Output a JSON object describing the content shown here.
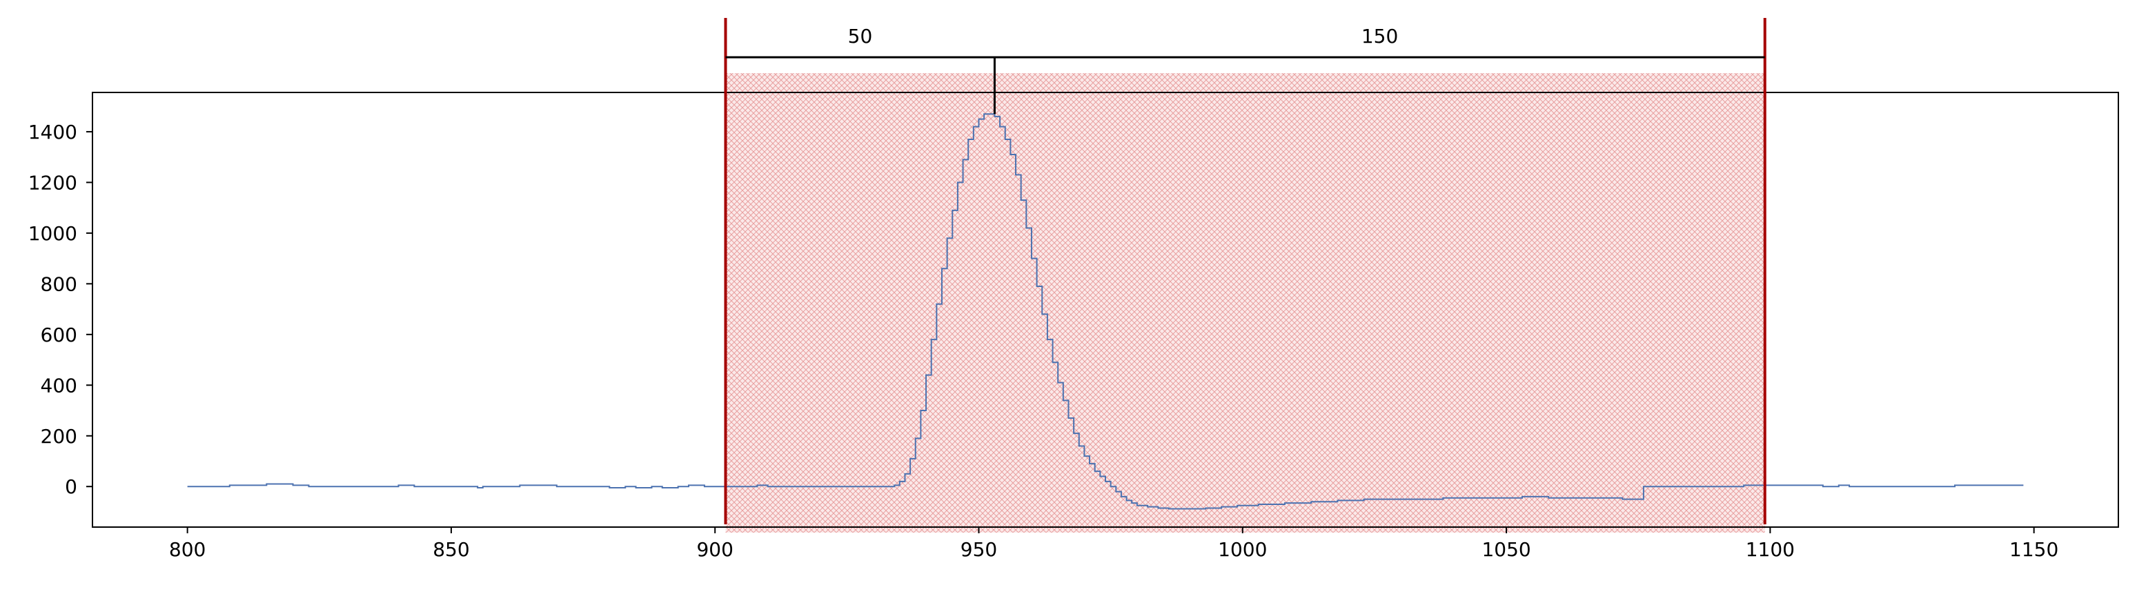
{
  "chart_data": {
    "type": "line",
    "title": "",
    "xlabel": "",
    "ylabel": "",
    "xlim": [
      782,
      1166
    ],
    "ylim": [
      -160,
      1555
    ],
    "xticks": [
      800,
      850,
      900,
      950,
      1000,
      1050,
      1100,
      1150
    ],
    "yticks": [
      0,
      200,
      400,
      600,
      800,
      1000,
      1200,
      1400
    ],
    "grid": false,
    "step": true,
    "series": [
      {
        "name": "",
        "color": "#4c72b0",
        "x": [
          800,
          805,
          808,
          810,
          815,
          820,
          823,
          825,
          830,
          835,
          840,
          843,
          845,
          850,
          855,
          856,
          858,
          860,
          863,
          865,
          870,
          875,
          880,
          883,
          885,
          888,
          890,
          893,
          895,
          898,
          900,
          905,
          908,
          910,
          915,
          920,
          925,
          930,
          932,
          934,
          935,
          936,
          937,
          938,
          939,
          940,
          941,
          942,
          943,
          944,
          945,
          946,
          947,
          948,
          949,
          950,
          951,
          952,
          953,
          954,
          955,
          956,
          957,
          958,
          959,
          960,
          961,
          962,
          963,
          964,
          965,
          966,
          967,
          968,
          969,
          970,
          971,
          972,
          973,
          974,
          975,
          976,
          977,
          978,
          979,
          980,
          982,
          984,
          986,
          988,
          990,
          993,
          996,
          999,
          1003,
          1008,
          1013,
          1018,
          1023,
          1028,
          1033,
          1038,
          1043,
          1048,
          1053,
          1058,
          1063,
          1068,
          1072,
          1075,
          1076,
          1080,
          1085,
          1090,
          1095,
          1098,
          1100,
          1105,
          1110,
          1113,
          1115,
          1120,
          1125,
          1130,
          1135,
          1140,
          1145,
          1148
        ],
        "y": [
          0,
          0,
          5,
          5,
          10,
          5,
          0,
          0,
          0,
          0,
          5,
          0,
          0,
          0,
          -5,
          0,
          0,
          0,
          5,
          5,
          0,
          0,
          -5,
          0,
          -5,
          0,
          -5,
          0,
          5,
          0,
          0,
          0,
          5,
          0,
          0,
          0,
          0,
          0,
          0,
          5,
          20,
          50,
          110,
          190,
          300,
          440,
          580,
          720,
          860,
          980,
          1090,
          1200,
          1290,
          1370,
          1420,
          1450,
          1470,
          1470,
          1460,
          1420,
          1370,
          1310,
          1230,
          1130,
          1020,
          900,
          790,
          680,
          580,
          490,
          410,
          340,
          270,
          210,
          160,
          120,
          90,
          60,
          40,
          20,
          0,
          -20,
          -40,
          -55,
          -65,
          -75,
          -80,
          -85,
          -88,
          -88,
          -88,
          -85,
          -80,
          -75,
          -70,
          -65,
          -60,
          -55,
          -50,
          -50,
          -50,
          -45,
          -45,
          -45,
          -40,
          -45,
          -45,
          -45,
          -50,
          -50,
          0,
          0,
          0,
          0,
          5,
          5,
          5,
          5,
          0,
          5,
          0,
          0,
          0,
          0,
          5,
          5,
          5,
          5
        ]
      }
    ],
    "shaded_region": {
      "x_start": 902,
      "x_end": 1099,
      "color": "#d62728"
    },
    "markers": {
      "left_x": 902,
      "right_x": 1099,
      "peak_x": 953,
      "color": "#a50000"
    },
    "annotations": [
      {
        "label": "50",
        "from_x": 902,
        "to_x": 953
      },
      {
        "label": "150",
        "from_x": 953,
        "to_x": 1099
      }
    ]
  }
}
